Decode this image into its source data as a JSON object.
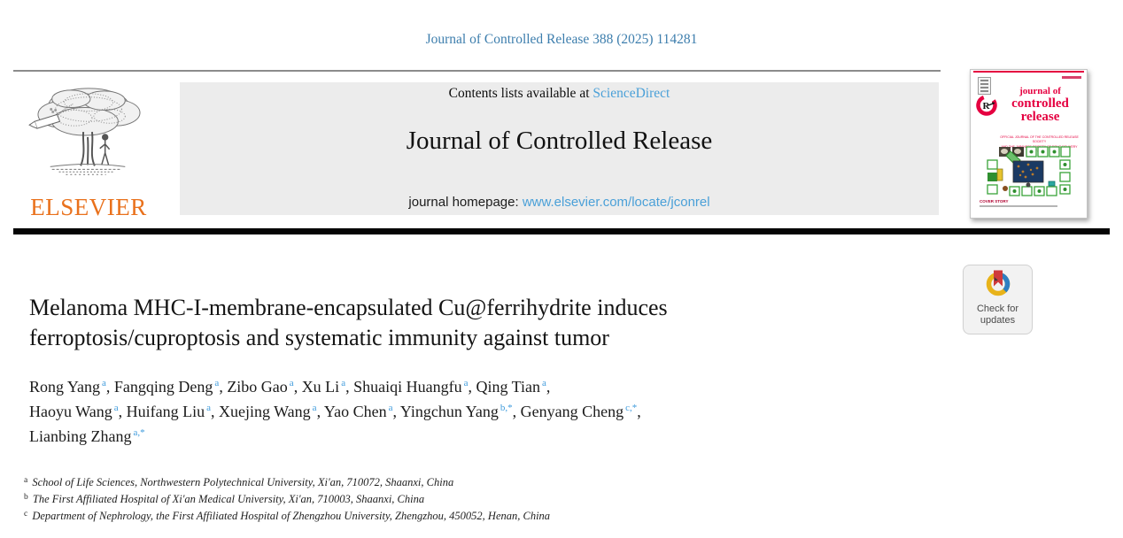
{
  "colors": {
    "link_blue": "#4aa0d8",
    "citation_blue": "#3d7ead",
    "superscript_blue": "#3f9bdc",
    "elsevier_orange": "#e9711c",
    "cover_red": "#e50040",
    "banner_gray": "#ececec",
    "badge_ring_yellow": "#e8b31a",
    "badge_ring_blue": "#2e7fc2",
    "badge_bookmark_red": "#cf3a3c"
  },
  "masthead": {
    "citation": "Journal of Controlled Release 388 (2025) 114281",
    "contents_prefix": "Contents lists available at ",
    "sciencedirect_link": "ScienceDirect",
    "journal_title": "Journal of Controlled Release",
    "homepage_prefix": "journal homepage: ",
    "homepage_url": "www.elsevier.com/locate/jconrel",
    "publisher_name": "ELSEVIER"
  },
  "cover_thumbnail": {
    "title_line_1": "journal of",
    "title_line_2": "controlled",
    "title_line_3": "release",
    "subtitle_line_1": "OFFICIAL JOURNAL OF THE CONTROLLED RELEASE SOCIETY",
    "subtitle_line_2": "AND THE JAPANESE SOCIETY OF DRUG DELIVERY SYSTEM",
    "cover_story_label": "COVER STORY"
  },
  "check_badge": {
    "label": "Check for updates"
  },
  "article": {
    "title": "Melanoma MHC-I-membrane-encapsulated Cu@ferrihydrite induces ferroptosis/cuproptosis and systematic immunity against tumor",
    "authors": [
      {
        "name": "Rong Yang",
        "sup": "a"
      },
      {
        "name": "Fangqing Deng",
        "sup": "a"
      },
      {
        "name": "Zibo Gao",
        "sup": "a"
      },
      {
        "name": "Xu Li",
        "sup": "a"
      },
      {
        "name": "Shuaiqi Huangfu",
        "sup": "a"
      },
      {
        "name": "Qing Tian",
        "sup": "a",
        "line_break": true
      },
      {
        "name": "Haoyu Wang",
        "sup": "a"
      },
      {
        "name": "Huifang Liu",
        "sup": "a"
      },
      {
        "name": "Xuejing Wang",
        "sup": "a"
      },
      {
        "name": "Yao Chen",
        "sup": "a"
      },
      {
        "name": "Yingchun Yang",
        "sup": "b,*"
      },
      {
        "name": "Genyang Cheng",
        "sup": "c,*",
        "line_break": true
      },
      {
        "name": "Lianbing Zhang",
        "sup": "a,*"
      }
    ],
    "affiliations": [
      {
        "sup": "a",
        "text": "School of Life Sciences, Northwestern Polytechnical University, Xi'an, 710072, Shaanxi, China"
      },
      {
        "sup": "b",
        "text": "The First Affiliated Hospital of Xi'an Medical University, Xi'an, 710003, Shaanxi, China"
      },
      {
        "sup": "c",
        "text": "Department of Nephrology, the First Affiliated Hospital of Zhengzhou University, Zhengzhou, 450052, Henan, China"
      }
    ]
  }
}
